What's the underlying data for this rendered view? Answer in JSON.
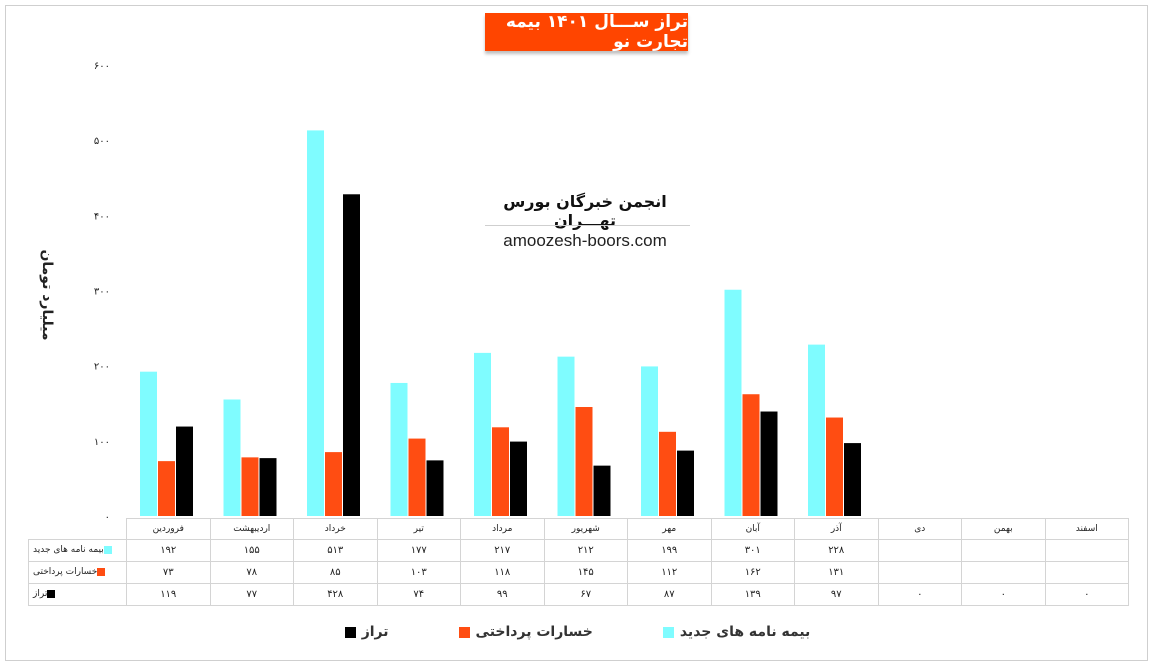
{
  "title": "تراز ســـال ۱۴۰۱ بیمه تجارت نو",
  "watermark": {
    "name": "انجمن خبرگان بورس تهـــران",
    "url": "amoozesh-boors.com"
  },
  "yaxis_title": "میلیارد تومان",
  "colors": {
    "new_policies": "#7ffcff",
    "claims": "#ff4d12",
    "balance": "#000000"
  },
  "chart_data": {
    "type": "bar",
    "title": "تراز ســـال ۱۴۰۱ بیمه تجارت نو",
    "ylabel": "میلیارد تومان",
    "ylim": [
      0,
      600
    ],
    "yticks": [
      0,
      100,
      200,
      300,
      400,
      500,
      600
    ],
    "ytick_labels": [
      "۰",
      "۱۰۰",
      "۲۰۰",
      "۳۰۰",
      "۴۰۰",
      "۵۰۰",
      "۶۰۰"
    ],
    "categories": [
      "فروردین",
      "اردیبهشت",
      "خرداد",
      "تیر",
      "مرداد",
      "شهریور",
      "مهر",
      "آبان",
      "آذر",
      "دی",
      "بهمن",
      "اسفند"
    ],
    "series": [
      {
        "name": "بیمه نامه های جدید",
        "color": "#7ffcff",
        "values": [
          192,
          155,
          513,
          177,
          217,
          212,
          199,
          301,
          228,
          null,
          null,
          null
        ],
        "labels": [
          "۱۹۲",
          "۱۵۵",
          "۵۱۳",
          "۱۷۷",
          "۲۱۷",
          "۲۱۲",
          "۱۹۹",
          "۳۰۱",
          "۲۲۸",
          "",
          "",
          ""
        ]
      },
      {
        "name": "خسارات پرداختی",
        "color": "#ff4d12",
        "values": [
          73,
          78,
          85,
          103,
          118,
          145,
          112,
          162,
          131,
          null,
          null,
          null
        ],
        "labels": [
          "۷۳",
          "۷۸",
          "۸۵",
          "۱۰۳",
          "۱۱۸",
          "۱۴۵",
          "۱۱۲",
          "۱۶۲",
          "۱۳۱",
          "",
          "",
          ""
        ]
      },
      {
        "name": "تراز",
        "color": "#000000",
        "values": [
          119,
          77,
          428,
          74,
          99,
          67,
          87,
          139,
          97,
          0,
          0,
          0
        ],
        "labels": [
          "۱۱۹",
          "۷۷",
          "۴۲۸",
          "۷۴",
          "۹۹",
          "۶۷",
          "۸۷",
          "۱۳۹",
          "۹۷",
          "۰",
          "۰",
          "۰"
        ]
      }
    ],
    "legend": "bottom",
    "grid": false
  }
}
